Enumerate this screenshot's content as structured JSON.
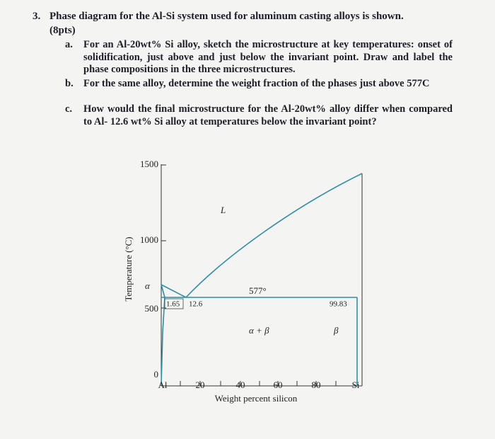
{
  "question": {
    "number": "3.",
    "text": "Phase diagram for the Al-Si system used for aluminum casting alloys is shown.",
    "points": "(8pts)"
  },
  "parts": [
    {
      "label": "a.",
      "text": "For an Al-20wt% Si alloy, sketch the microstructure at key temperatures: onset of solidification, just above and just below the invariant point. Draw and label the phase compositions in the three microstructures."
    },
    {
      "label": "b.",
      "text": "For the same alloy, determine the weight fraction of the phases just above 577C"
    },
    {
      "label": "c.",
      "text": "How would the final microstructure for the Al-20wt% alloy differ when compared to Al- 12.6 wt% Si alloy at temperatures below the invariant point?"
    }
  ],
  "figure": {
    "y_axis_label": "Temperature (°C)",
    "x_axis_label": "Weight percent silicon",
    "y_ticks": [
      "1500",
      "1000",
      "500",
      "0"
    ],
    "x_ticks": [
      "Al",
      "20",
      "40",
      "60",
      "80",
      "Si"
    ],
    "labels": {
      "liquid": "L",
      "alpha": "α",
      "eutectic_temp": "577°",
      "alpha_beta": "α + β",
      "beta": "β",
      "alpha_solubility": "1.65",
      "eutectic_comp": "12.6",
      "beta_solubility": "99.83"
    }
  }
}
